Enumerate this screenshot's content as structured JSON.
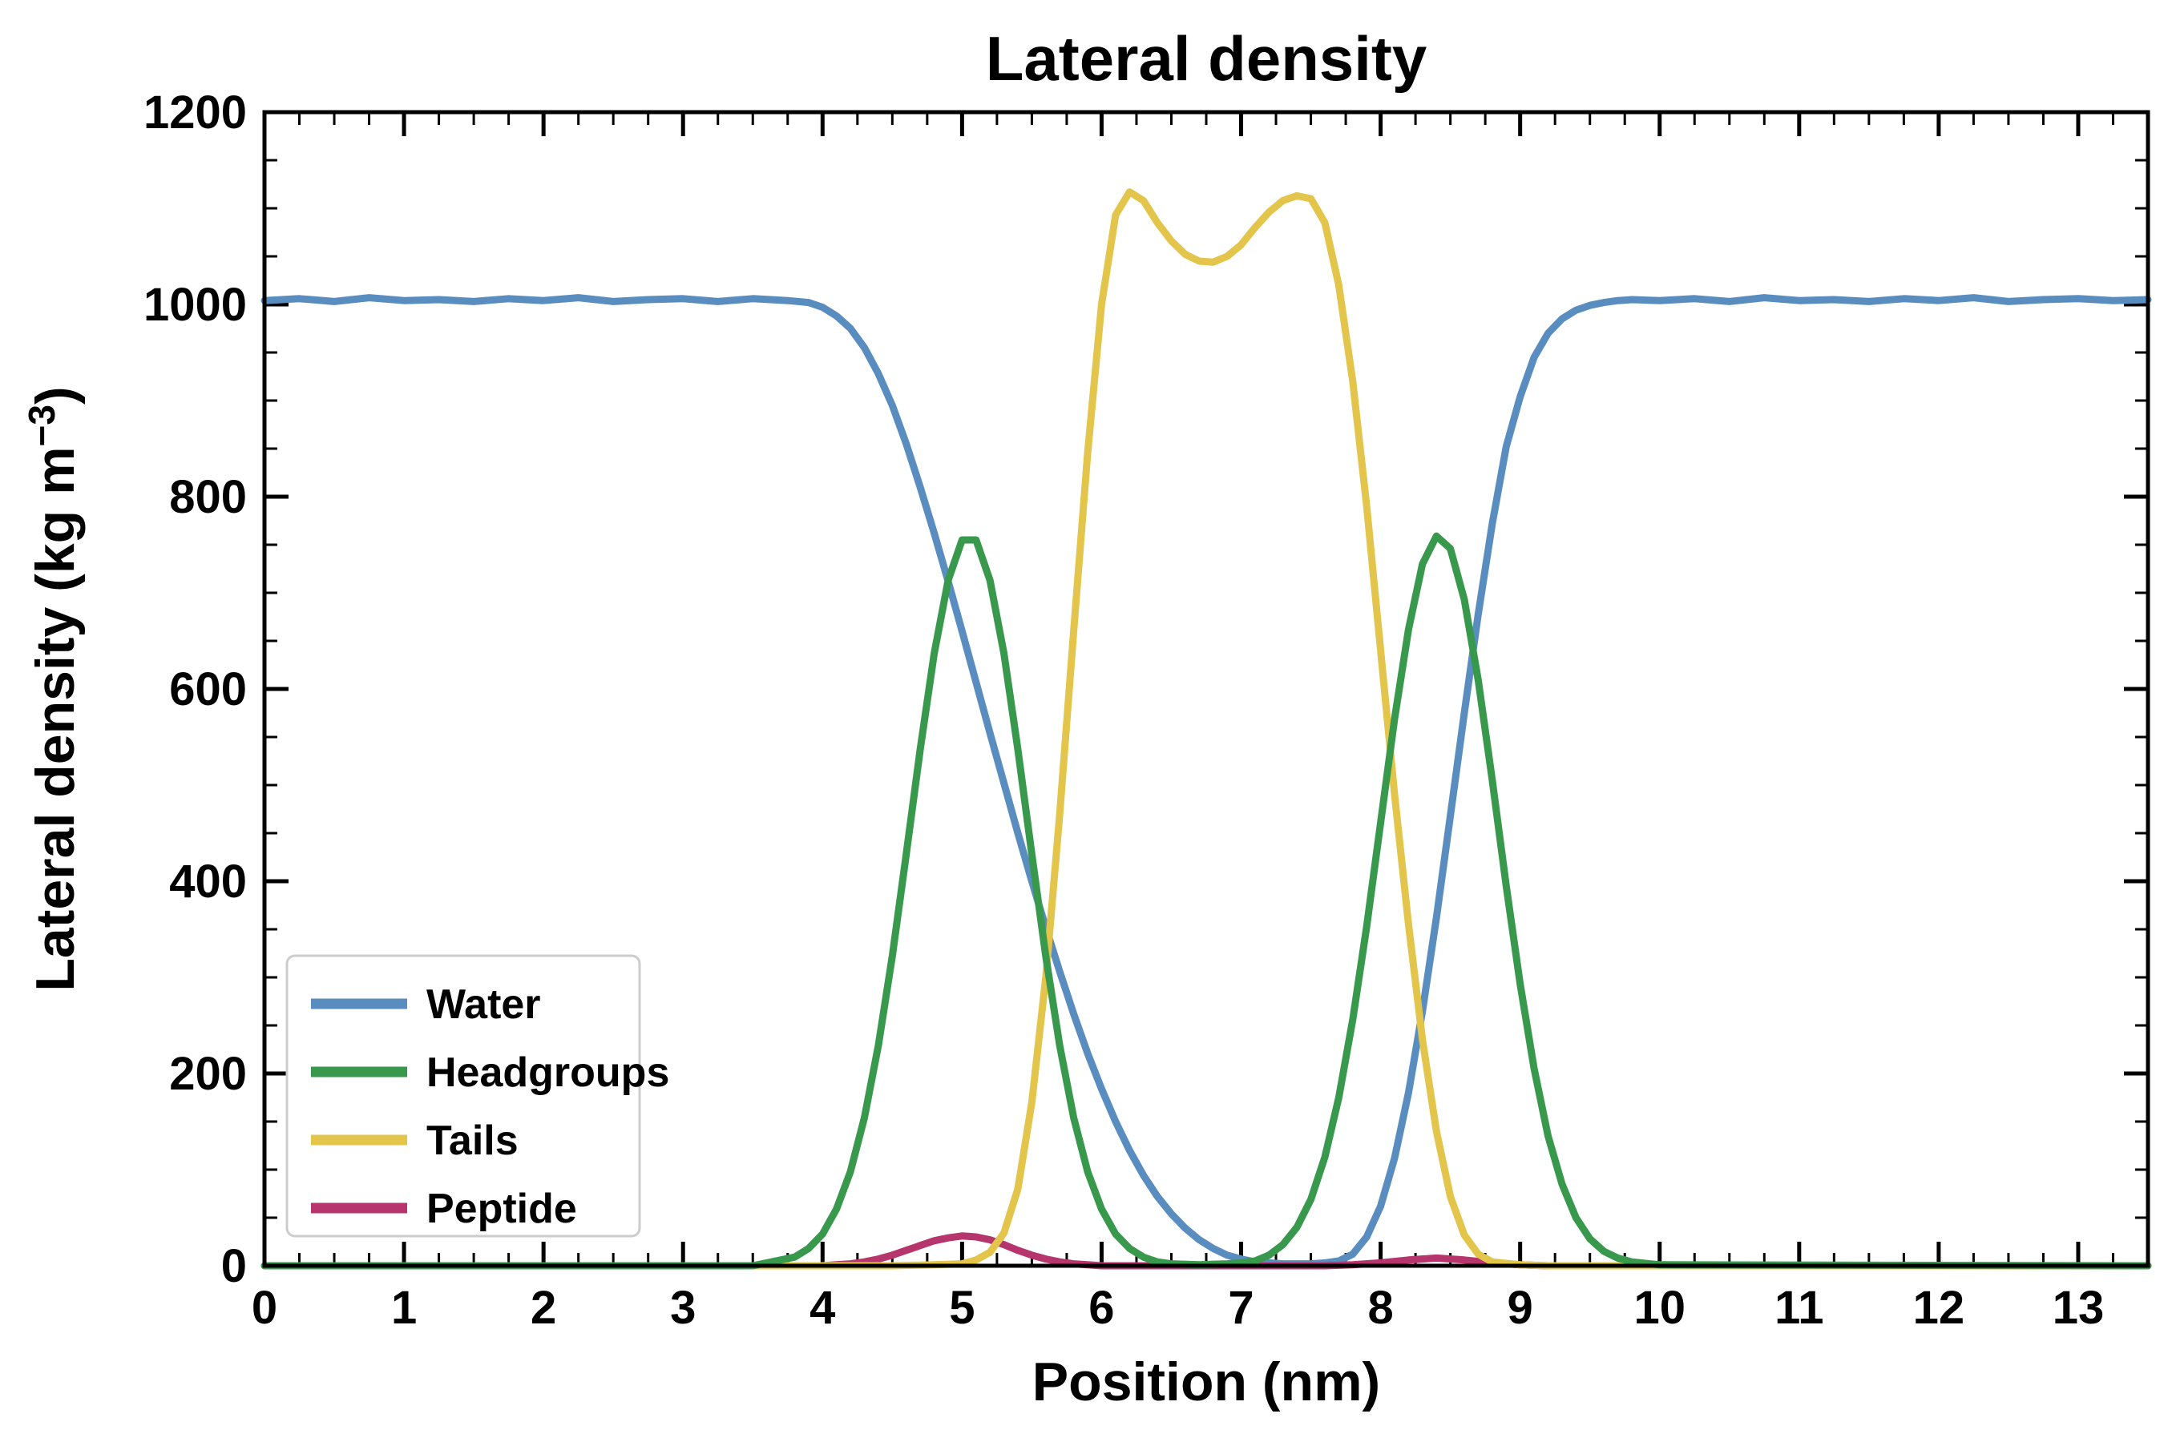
{
  "labels": {
    "title": "Lateral density",
    "xlabel": "Position (nm)",
    "ylabel_main": "Lateral density (kg m",
    "ylabel_sup": "−3",
    "ylabel_close": ")"
  },
  "chart_data": {
    "type": "line",
    "title": "Lateral density",
    "xlabel": "Position (nm)",
    "ylabel": "Lateral density (kg m⁻³)",
    "xlim": [
      0,
      13.5
    ],
    "ylim": [
      0,
      1200
    ],
    "x_major_ticks": [
      0,
      1,
      2,
      3,
      4,
      5,
      6,
      7,
      8,
      9,
      10,
      11,
      12,
      13
    ],
    "x_minor_step": 0.25,
    "y_major_ticks": [
      0,
      200,
      400,
      600,
      800,
      1000,
      1200
    ],
    "y_minor_step": 50,
    "grid": false,
    "legend_position": "lower left",
    "axis_color": "#000000",
    "legend_border_color": "#cccccc",
    "draw_order": [
      "Water",
      "Peptide",
      "Tails",
      "Headgroups"
    ],
    "series": [
      {
        "name": "Water",
        "color": "#5a8dbf",
        "x": [
          0,
          0.25,
          0.5,
          0.75,
          1,
          1.25,
          1.5,
          1.75,
          2,
          2.25,
          2.5,
          2.75,
          3,
          3.25,
          3.5,
          3.75,
          3.9,
          4,
          4.1,
          4.2,
          4.3,
          4.4,
          4.5,
          4.6,
          4.7,
          4.8,
          4.9,
          5,
          5.1,
          5.2,
          5.3,
          5.4,
          5.5,
          5.6,
          5.7,
          5.8,
          5.9,
          6,
          6.1,
          6.2,
          6.3,
          6.4,
          6.5,
          6.6,
          6.7,
          6.8,
          6.9,
          7,
          7.1,
          7.2,
          7.3,
          7.4,
          7.5,
          7.6,
          7.7,
          7.8,
          7.9,
          8,
          8.1,
          8.2,
          8.3,
          8.4,
          8.5,
          8.6,
          8.7,
          8.8,
          8.9,
          9,
          9.1,
          9.2,
          9.3,
          9.4,
          9.5,
          9.6,
          9.7,
          9.8,
          10,
          10.25,
          10.5,
          10.75,
          11,
          11.25,
          11.5,
          11.75,
          12,
          12.25,
          12.5,
          12.75,
          13,
          13.25,
          13.5
        ],
        "y": [
          1004,
          1006,
          1003,
          1007,
          1004,
          1005,
          1003,
          1006,
          1004,
          1007,
          1003,
          1005,
          1006,
          1003,
          1006,
          1004,
          1002,
          997,
          988,
          975,
          955,
          928,
          895,
          855,
          810,
          762,
          712,
          660,
          607,
          554,
          502,
          450,
          400,
          352,
          306,
          262,
          221,
          184,
          150,
          120,
          94,
          72,
          54,
          39,
          27,
          18,
          11,
          7,
          4,
          3,
          2,
          2,
          2,
          3,
          5,
          12,
          30,
          62,
          112,
          180,
          265,
          362,
          468,
          575,
          678,
          772,
          852,
          904,
          945,
          970,
          985,
          994,
          999,
          1002,
          1004,
          1005,
          1004,
          1006,
          1003,
          1007,
          1004,
          1005,
          1003,
          1006,
          1004,
          1007,
          1003,
          1005,
          1006,
          1004,
          1005
        ]
      },
      {
        "name": "Headgroups",
        "color": "#38984b",
        "x": [
          0,
          3.5,
          3.8,
          3.9,
          4,
          4.1,
          4.2,
          4.3,
          4.4,
          4.5,
          4.6,
          4.7,
          4.8,
          4.9,
          5,
          5.1,
          5.2,
          5.3,
          5.4,
          5.5,
          5.6,
          5.7,
          5.8,
          5.9,
          6,
          6.1,
          6.2,
          6.3,
          6.4,
          6.5,
          6.7,
          6.9,
          7,
          7.1,
          7.2,
          7.3,
          7.4,
          7.5,
          7.6,
          7.7,
          7.8,
          7.9,
          8,
          8.1,
          8.2,
          8.3,
          8.4,
          8.5,
          8.6,
          8.7,
          8.8,
          8.9,
          9,
          9.1,
          9.2,
          9.3,
          9.4,
          9.5,
          9.6,
          9.7,
          9.8,
          10,
          13.5
        ],
        "y": [
          0,
          0,
          9,
          18,
          33,
          59,
          98,
          154,
          229,
          322,
          428,
          537,
          637,
          713,
          755,
          755,
          713,
          637,
          537,
          428,
          322,
          229,
          154,
          98,
          59,
          33,
          18,
          9,
          4,
          2,
          1,
          2,
          3,
          5,
          11,
          22,
          40,
          69,
          113,
          175,
          256,
          353,
          461,
          569,
          662,
          730,
          759,
          746,
          693,
          609,
          505,
          395,
          293,
          205,
          135,
          85,
          50,
          28,
          15,
          8,
          4,
          1,
          0
        ]
      },
      {
        "name": "Tails",
        "color": "#e2c54a",
        "x": [
          0,
          4.5,
          4.8,
          5,
          5.1,
          5.2,
          5.3,
          5.4,
          5.5,
          5.6,
          5.7,
          5.8,
          5.9,
          6,
          6.1,
          6.2,
          6.3,
          6.4,
          6.5,
          6.6,
          6.7,
          6.8,
          6.9,
          7,
          7.1,
          7.2,
          7.3,
          7.4,
          7.5,
          7.6,
          7.7,
          7.8,
          7.9,
          8,
          8.1,
          8.2,
          8.3,
          8.4,
          8.5,
          8.6,
          8.7,
          8.8,
          9,
          9.2,
          10,
          13.5
        ],
        "y": [
          0,
          0,
          1,
          2,
          6,
          14,
          34,
          80,
          170,
          300,
          470,
          660,
          845,
          1000,
          1093,
          1117,
          1108,
          1085,
          1066,
          1052,
          1045,
          1044,
          1050,
          1062,
          1080,
          1096,
          1108,
          1113,
          1110,
          1085,
          1020,
          920,
          790,
          640,
          490,
          355,
          235,
          140,
          72,
          32,
          12,
          4,
          1,
          0,
          0,
          0
        ]
      },
      {
        "name": "Peptide",
        "color": "#b5356c",
        "x": [
          0,
          3,
          4,
          4.1,
          4.2,
          4.3,
          4.4,
          4.5,
          4.6,
          4.7,
          4.8,
          4.9,
          5,
          5.1,
          5.2,
          5.3,
          5.4,
          5.5,
          5.6,
          5.7,
          5.8,
          5.9,
          6,
          6.5,
          7.6,
          7.8,
          8,
          8.2,
          8.4,
          8.6,
          8.8,
          9,
          9.2,
          10,
          13.5
        ],
        "y": [
          0,
          0,
          0,
          1,
          2,
          4,
          7,
          11,
          16,
          21,
          26,
          29,
          31,
          30,
          27,
          22,
          16,
          11,
          7,
          4,
          2,
          1,
          0,
          0,
          0,
          1,
          3,
          6,
          8,
          6,
          3,
          1,
          0,
          0,
          0
        ]
      }
    ]
  }
}
